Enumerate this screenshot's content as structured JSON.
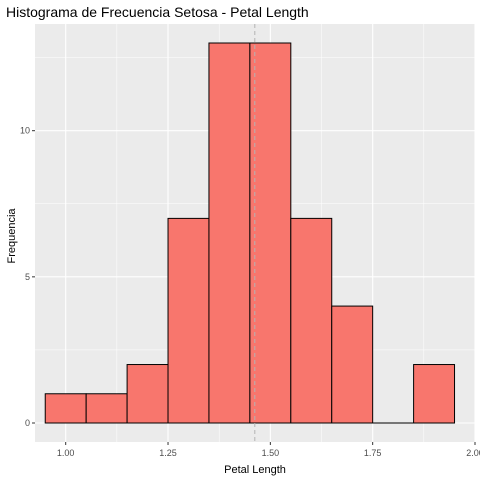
{
  "chart_data": {
    "type": "bar",
    "subtype": "histogram",
    "title": "Histograma de Frecuencia Setosa - Petal Length",
    "xlabel": "Petal Length",
    "ylabel": "Frequencia",
    "xlim": [
      0.925,
      2.0
    ],
    "ylim": [
      -0.65,
      13.65
    ],
    "x_ticks": [
      {
        "value": 1.0,
        "label": "1.00"
      },
      {
        "value": 1.25,
        "label": "1.25"
      },
      {
        "value": 1.5,
        "label": "1.50"
      },
      {
        "value": 1.75,
        "label": "1.75"
      },
      {
        "value": 2.0,
        "label": "2.00"
      }
    ],
    "y_ticks": [
      {
        "value": 0,
        "label": "0"
      },
      {
        "value": 5,
        "label": "5"
      },
      {
        "value": 10,
        "label": "10"
      }
    ],
    "bins": [
      {
        "x0": 0.95,
        "x1": 1.05,
        "count": 1
      },
      {
        "x0": 1.05,
        "x1": 1.15,
        "count": 1
      },
      {
        "x0": 1.15,
        "x1": 1.25,
        "count": 2
      },
      {
        "x0": 1.25,
        "x1": 1.35,
        "count": 7
      },
      {
        "x0": 1.35,
        "x1": 1.45,
        "count": 13
      },
      {
        "x0": 1.45,
        "x1": 1.55,
        "count": 13
      },
      {
        "x0": 1.55,
        "x1": 1.65,
        "count": 7
      },
      {
        "x0": 1.65,
        "x1": 1.75,
        "count": 4
      },
      {
        "x0": 1.75,
        "x1": 1.85,
        "count": 0
      },
      {
        "x0": 1.85,
        "x1": 1.95,
        "count": 2
      }
    ],
    "mean_line": {
      "value": 1.462,
      "style": "dashed"
    },
    "grid": true,
    "legend": "none",
    "colors": {
      "bar_fill": "#f8766d",
      "bar_stroke": "#000000",
      "panel_background": "#ebebeb",
      "grid_major": "#ffffff",
      "mean_line": "#b3b3b3"
    }
  }
}
